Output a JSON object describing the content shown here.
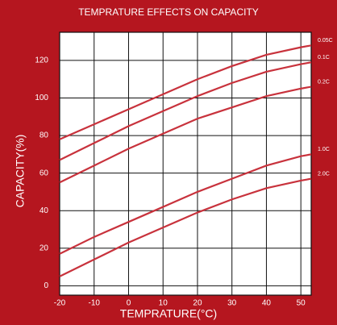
{
  "chart_data": {
    "type": "line",
    "title": "TEMPRATURE EFFECTS ON CAPACITY",
    "x_label": "TEMPRATURE(°C)",
    "y_label": "CAPACITY(%)",
    "x": [
      -20,
      -10,
      0,
      10,
      20,
      30,
      40,
      50,
      53
    ],
    "series": [
      {
        "name": "0.05C",
        "color": "#c8323c",
        "values": [
          78,
          86,
          94,
          102,
          110,
          117,
          123,
          127,
          128
        ]
      },
      {
        "name": "0.1C",
        "color": "#c8323c",
        "values": [
          67,
          76,
          85,
          93,
          101,
          108,
          114,
          118,
          119
        ]
      },
      {
        "name": "0.2C",
        "color": "#c8323c",
        "values": [
          55,
          64,
          73,
          81,
          89,
          95,
          101,
          105,
          106
        ]
      },
      {
        "name": "1.0C",
        "color": "#c8323c",
        "values": [
          17,
          26,
          34,
          42,
          50,
          57,
          64,
          69,
          70
        ]
      },
      {
        "name": "2.0C",
        "color": "#c8323c",
        "values": [
          5,
          14,
          23,
          31,
          39,
          46,
          52,
          56,
          57
        ]
      }
    ],
    "xlim": [
      -20,
      53
    ],
    "xticks": [
      -20,
      -10,
      0,
      10,
      20,
      30,
      40,
      50
    ],
    "ylim": [
      -5,
      135
    ],
    "yticks": [
      0,
      20,
      40,
      60,
      80,
      100,
      120
    ],
    "grid": true
  }
}
